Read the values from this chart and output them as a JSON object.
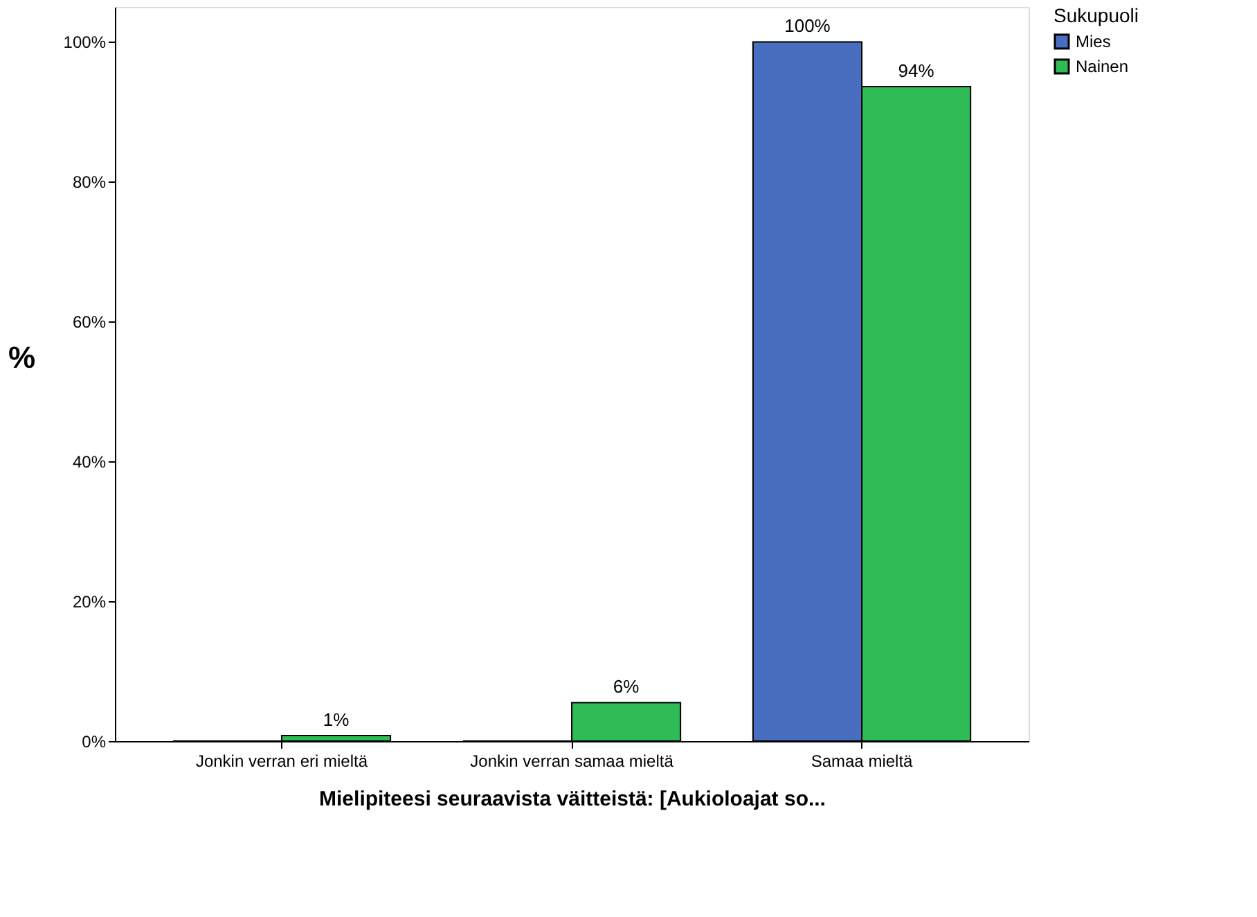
{
  "chart_data": {
    "type": "bar",
    "xlabel": "Mielipiteesi seuraavista väitteistä: [Aukioloajat so...",
    "ylabel": "%",
    "legend_title": "Sukupuoli",
    "legend": "top right",
    "categories": [
      "Jonkin verran eri mieltä",
      "Jonkin verran samaa mieltä",
      "Samaa mieltä"
    ],
    "series": [
      {
        "name": "Mies",
        "color": "#4a6ebf",
        "values": [
          0,
          0,
          100
        ],
        "value_labels": [
          null,
          null,
          "100%"
        ]
      },
      {
        "name": "Nainen",
        "color": "#2fbb56",
        "values": [
          0.8,
          5.5,
          93.6
        ],
        "value_labels": [
          "1%",
          "6%",
          "94%"
        ]
      }
    ],
    "ylim": [
      0,
      105
    ],
    "yticks": [
      {
        "value": 0,
        "label": "0%"
      },
      {
        "value": 20,
        "label": "20%"
      },
      {
        "value": 40,
        "label": "40%"
      },
      {
        "value": 60,
        "label": "60%"
      },
      {
        "value": 80,
        "label": "80%"
      },
      {
        "value": 100,
        "label": "100%"
      }
    ],
    "grid": false
  }
}
